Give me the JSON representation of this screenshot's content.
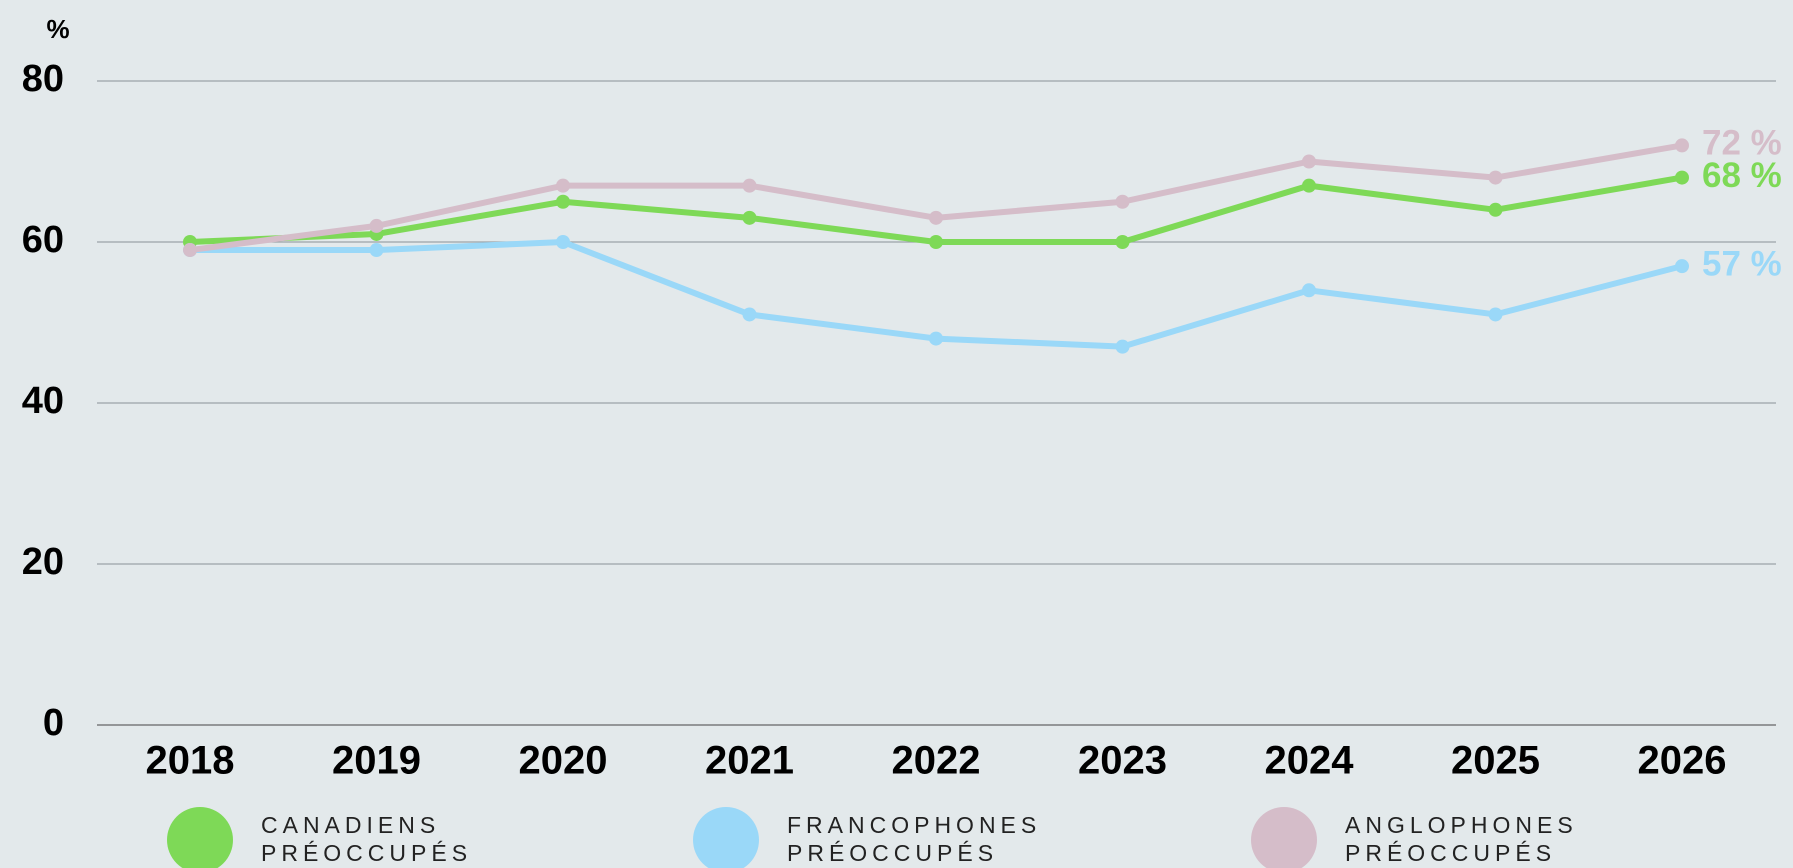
{
  "chart_data": {
    "type": "line",
    "y_axis_label": "%",
    "categories": [
      "2018",
      "2019",
      "2020",
      "2021",
      "2022",
      "2023",
      "2024",
      "2025",
      "2026"
    ],
    "series": [
      {
        "name": "CANADIENS PRÉOCCUPÉS",
        "color": "#7ed957",
        "values": [
          60,
          61,
          65,
          63,
          60,
          60,
          67,
          64,
          68
        ],
        "value_labels": [
          null,
          null,
          null,
          null,
          null,
          null,
          null,
          null,
          "68 %"
        ]
      },
      {
        "name": "FRANCOPHONES PRÉOCCUPÉS",
        "color": "#9ad8f8",
        "values": [
          59,
          59,
          60,
          51,
          48,
          47,
          54,
          51,
          57
        ],
        "value_labels": [
          null,
          null,
          null,
          null,
          null,
          null,
          null,
          null,
          "57 %"
        ]
      },
      {
        "name": "ANGLOPHONES PRÉOCCUPÉS",
        "color": "#d5bdc9",
        "values": [
          59,
          62,
          67,
          67,
          63,
          65,
          70,
          68,
          72
        ],
        "value_labels": [
          null,
          null,
          null,
          null,
          null,
          null,
          null,
          null,
          "72 %"
        ]
      }
    ],
    "ylim": [
      0,
      80
    ],
    "yticks": [
      0,
      20,
      40,
      60,
      80
    ],
    "grid": true
  }
}
